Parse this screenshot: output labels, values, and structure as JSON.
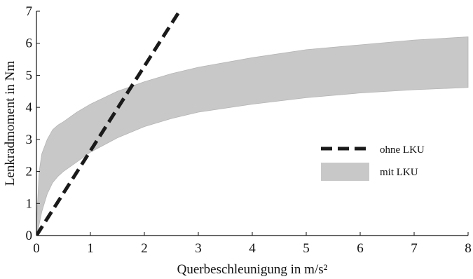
{
  "chart_data": {
    "type": "area",
    "xlabel": "Querbeschleunigung in m/s²",
    "ylabel": "Lenkradmoment in Nm",
    "xlim": [
      0,
      8
    ],
    "ylim": [
      0,
      7
    ],
    "x_ticks": [
      "0",
      "1",
      "2",
      "3",
      "4",
      "5",
      "6",
      "7",
      "8"
    ],
    "y_ticks": [
      "0",
      "1",
      "2",
      "3",
      "4",
      "5",
      "6",
      "7"
    ],
    "grid": false,
    "legend_position": "right",
    "series": [
      {
        "name": "ohne LKU",
        "type": "line",
        "style": "dashed",
        "color": "#1a1a1a",
        "x": [
          0,
          2.65
        ],
        "y": [
          0,
          7
        ]
      },
      {
        "name": "mit LKU",
        "type": "band",
        "color": "#c8c8c8",
        "x": [
          0,
          0.05,
          0.1,
          0.2,
          0.3,
          0.4,
          0.5,
          0.75,
          1,
          1.5,
          2,
          2.5,
          3,
          4,
          5,
          6,
          7,
          8
        ],
        "upper": [
          0.3,
          2.0,
          2.55,
          3.0,
          3.3,
          3.45,
          3.55,
          3.85,
          4.1,
          4.5,
          4.8,
          5.05,
          5.25,
          5.55,
          5.8,
          5.95,
          6.1,
          6.2
        ],
        "lower": [
          0.0,
          0.35,
          0.75,
          1.3,
          1.65,
          1.85,
          2.0,
          2.3,
          2.6,
          3.05,
          3.4,
          3.65,
          3.85,
          4.1,
          4.3,
          4.45,
          4.55,
          4.62
        ]
      }
    ]
  },
  "colors": {
    "band": "#c8c8c8",
    "dashed_line": "#1a1a1a",
    "axis": "#111111"
  }
}
